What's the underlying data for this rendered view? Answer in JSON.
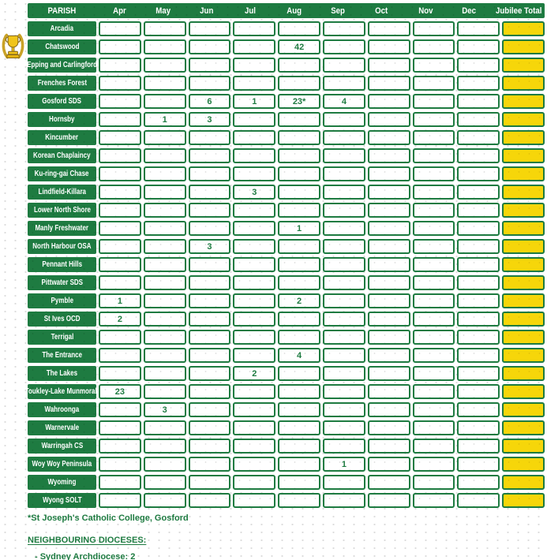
{
  "colors": {
    "green": "#1e7b41",
    "yellow": "#f6d60a",
    "text_on_green": "#ffffff"
  },
  "icons": {
    "trophy": "gold-trophy-with-laurel-wreath"
  },
  "table": {
    "columns": [
      "PARISH",
      "Apr",
      "May",
      "Jun",
      "Jul",
      "Aug",
      "Sep",
      "Oct",
      "Nov",
      "Dec",
      "Jubilee Total"
    ],
    "rows": [
      {
        "parish": "Arcadia",
        "months": [
          "",
          "",
          "",
          "",
          "",
          "",
          "",
          "",
          ""
        ],
        "jubilee_total": "",
        "trophy": false
      },
      {
        "parish": "Chatswood",
        "months": [
          "",
          "",
          "",
          "",
          "42",
          "",
          "",
          "",
          ""
        ],
        "jubilee_total": "",
        "trophy": true
      },
      {
        "parish": "Epping and Carlingford",
        "months": [
          "",
          "",
          "",
          "",
          "",
          "",
          "",
          "",
          ""
        ],
        "jubilee_total": "",
        "trophy": false
      },
      {
        "parish": "Frenches Forest",
        "months": [
          "",
          "",
          "",
          "",
          "",
          "",
          "",
          "",
          ""
        ],
        "jubilee_total": "",
        "trophy": false
      },
      {
        "parish": "Gosford SDS",
        "months": [
          "",
          "",
          "6",
          "1",
          "23*",
          "4",
          "",
          "",
          ""
        ],
        "jubilee_total": "",
        "trophy": false
      },
      {
        "parish": "Hornsby",
        "months": [
          "",
          "1",
          "3",
          "",
          "",
          "",
          "",
          "",
          ""
        ],
        "jubilee_total": "",
        "trophy": false
      },
      {
        "parish": "Kincumber",
        "months": [
          "",
          "",
          "",
          "",
          "",
          "",
          "",
          "",
          ""
        ],
        "jubilee_total": "",
        "trophy": false
      },
      {
        "parish": "Korean Chaplaincy",
        "months": [
          "",
          "",
          "",
          "",
          "",
          "",
          "",
          "",
          ""
        ],
        "jubilee_total": "",
        "trophy": false
      },
      {
        "parish": "Ku-ring-gai Chase",
        "months": [
          "",
          "",
          "",
          "",
          "",
          "",
          "",
          "",
          ""
        ],
        "jubilee_total": "",
        "trophy": false
      },
      {
        "parish": "Lindfield-Killara",
        "months": [
          "",
          "",
          "",
          "3",
          "",
          "",
          "",
          "",
          ""
        ],
        "jubilee_total": "",
        "trophy": false
      },
      {
        "parish": "Lower North Shore",
        "months": [
          "",
          "",
          "",
          "",
          "",
          "",
          "",
          "",
          ""
        ],
        "jubilee_total": "",
        "trophy": false
      },
      {
        "parish": "Manly Freshwater",
        "months": [
          "",
          "",
          "",
          "",
          "1",
          "",
          "",
          "",
          ""
        ],
        "jubilee_total": "",
        "trophy": false
      },
      {
        "parish": "North Harbour OSA",
        "months": [
          "",
          "",
          "3",
          "",
          "",
          "",
          "",
          "",
          ""
        ],
        "jubilee_total": "",
        "trophy": false
      },
      {
        "parish": "Pennant Hills",
        "months": [
          "",
          "",
          "",
          "",
          "",
          "",
          "",
          "",
          ""
        ],
        "jubilee_total": "",
        "trophy": false
      },
      {
        "parish": "Pittwater SDS",
        "months": [
          "",
          "",
          "",
          "",
          "",
          "",
          "",
          "",
          ""
        ],
        "jubilee_total": "",
        "trophy": false
      },
      {
        "parish": "Pymble",
        "months": [
          "1",
          "",
          "",
          "",
          "2",
          "",
          "",
          "",
          ""
        ],
        "jubilee_total": "",
        "trophy": false
      },
      {
        "parish": "St Ives OCD",
        "months": [
          "2",
          "",
          "",
          "",
          "",
          "",
          "",
          "",
          ""
        ],
        "jubilee_total": "",
        "trophy": false
      },
      {
        "parish": "Terrigal",
        "months": [
          "",
          "",
          "",
          "",
          "",
          "",
          "",
          "",
          ""
        ],
        "jubilee_total": "",
        "trophy": false
      },
      {
        "parish": "The Entrance",
        "months": [
          "",
          "",
          "",
          "",
          "4",
          "",
          "",
          "",
          ""
        ],
        "jubilee_total": "",
        "trophy": false
      },
      {
        "parish": "The Lakes",
        "months": [
          "",
          "",
          "",
          "2",
          "",
          "",
          "",
          "",
          ""
        ],
        "jubilee_total": "",
        "trophy": false
      },
      {
        "parish": "Toukley-Lake Munmorah",
        "months": [
          "23",
          "",
          "",
          "",
          "",
          "",
          "",
          "",
          ""
        ],
        "jubilee_total": "",
        "trophy": false
      },
      {
        "parish": "Wahroonga",
        "months": [
          "",
          "3",
          "",
          "",
          "",
          "",
          "",
          "",
          ""
        ],
        "jubilee_total": "",
        "trophy": false
      },
      {
        "parish": "Warnervale",
        "months": [
          "",
          "",
          "",
          "",
          "",
          "",
          "",
          "",
          ""
        ],
        "jubilee_total": "",
        "trophy": false
      },
      {
        "parish": "Warringah CS",
        "months": [
          "",
          "",
          "",
          "",
          "",
          "",
          "",
          "",
          ""
        ],
        "jubilee_total": "",
        "trophy": false
      },
      {
        "parish": "Woy Woy Peninsula",
        "months": [
          "",
          "",
          "",
          "",
          "",
          "1",
          "",
          "",
          ""
        ],
        "jubilee_total": "",
        "trophy": false
      },
      {
        "parish": "Wyoming",
        "months": [
          "",
          "",
          "",
          "",
          "",
          "",
          "",
          "",
          ""
        ],
        "jubilee_total": "",
        "trophy": false
      },
      {
        "parish": "Wyong SOLT",
        "months": [
          "",
          "",
          "",
          "",
          "",
          "",
          "",
          "",
          ""
        ],
        "jubilee_total": "",
        "trophy": false
      }
    ]
  },
  "footnote": "*St Joseph's Catholic College, Gosford",
  "neighbouring_dioceses": {
    "heading": "NEIGHBOURING DIOCESES:",
    "items": [
      "- Sydney Archdiocese: 2"
    ]
  }
}
